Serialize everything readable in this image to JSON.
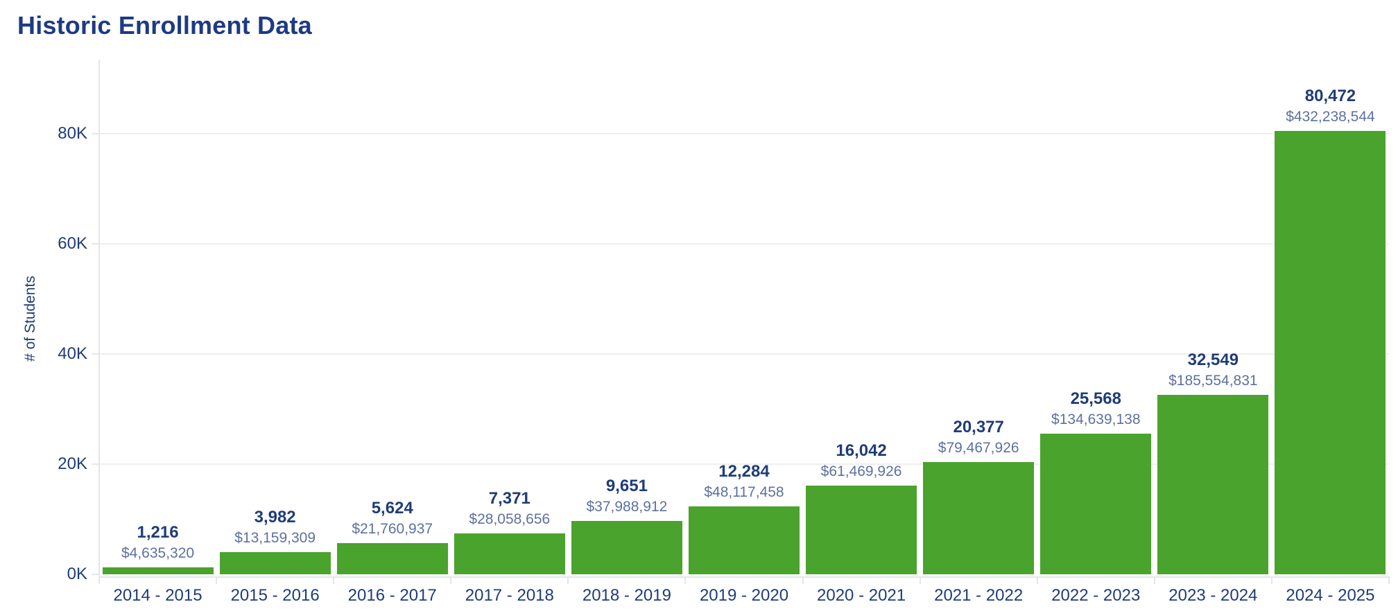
{
  "chart_data": {
    "type": "bar",
    "title": "Historic Enrollment Data",
    "xlabel": "",
    "ylabel": "# of Students",
    "legend": "none",
    "grid": true,
    "ylim": [
      0,
      93000
    ],
    "categories": [
      "2014 - 2015",
      "2015 - 2016",
      "2016 - 2017",
      "2017 - 2018",
      "2018 - 2019",
      "2019 - 2020",
      "2020 - 2021",
      "2021 - 2022",
      "2022 - 2023",
      "2023 - 2024",
      "2024 - 2025"
    ],
    "series": [
      {
        "name": "# of Students",
        "values": [
          1216,
          3982,
          5624,
          7371,
          9651,
          12284,
          16042,
          20377,
          25568,
          32549,
          80472
        ]
      },
      {
        "name": "Dollars (data labels)",
        "values": [
          4635320,
          13159309,
          21760937,
          28058656,
          37988912,
          48117458,
          61469926,
          79467926,
          134639138,
          185554831,
          432238544
        ]
      }
    ],
    "bar_labels": {
      "students": [
        "1,216",
        "3,982",
        "5,624",
        "7,371",
        "9,651",
        "12,284",
        "16,042",
        "20,377",
        "25,568",
        "32,549",
        "80,472"
      ],
      "dollars": [
        "$4,635,320",
        "$13,159,309",
        "$21,760,937",
        "$28,058,656",
        "$37,988,912",
        "$48,117,458",
        "$61,469,926",
        "$79,467,926",
        "$134,639,138",
        "$185,554,831",
        "$432,238,544"
      ]
    },
    "yticks": [
      {
        "value": 0,
        "label": "0K"
      },
      {
        "value": 20000,
        "label": "20K"
      },
      {
        "value": 40000,
        "label": "40K"
      },
      {
        "value": 60000,
        "label": "60K"
      },
      {
        "value": 80000,
        "label": "80K"
      }
    ],
    "colors": {
      "bar": "#4aa32c",
      "title": "#1d3a85",
      "text_primary": "#1f3c78",
      "text_secondary": "#5d70a0",
      "gridline": "#efefef",
      "axis_line": "#e3e6ea"
    }
  }
}
